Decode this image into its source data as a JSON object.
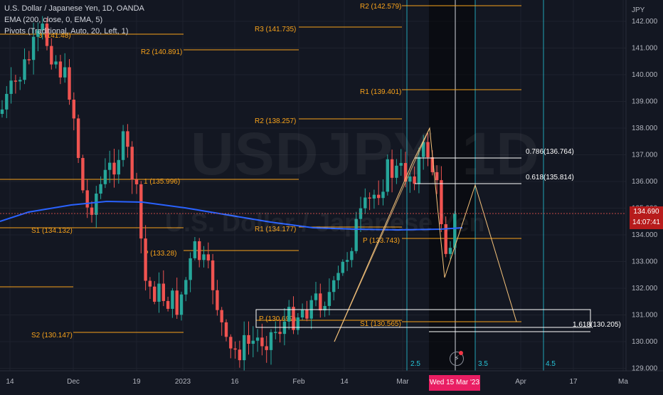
{
  "legend": {
    "line1": "U.S. Dollar / Japanese Yen, 1D, OANDA",
    "line2": "EMA (200, close, 0, EMA, 5)",
    "line3": "Pivots (Traditional, Auto, 20, Left, 1)"
  },
  "watermark": {
    "symbol": "USDJPY, 1D",
    "name": "U.S. Dollar / Japanese Yen"
  },
  "price_axis": {
    "currency": "JPY",
    "ticks": [
      "142.000",
      "141.000",
      "140.000",
      "139.000",
      "138.000",
      "137.000",
      "136.000",
      "135.000",
      "134.000",
      "133.000",
      "132.000",
      "131.000",
      "130.000",
      "129.000"
    ],
    "current_price": "134.690",
    "countdown": "14:07:41"
  },
  "time_axis": {
    "labels": [
      "14",
      "Dec",
      "19",
      "2023",
      "16",
      "Feb",
      "14",
      "Mar",
      "Apr",
      "17",
      "Ma"
    ],
    "highlight": "Wed 15 Mar '23"
  },
  "pivot_labels": [
    {
      "text": "R2 (142.579)"
    },
    {
      "text": "R3 (141.735)"
    },
    {
      "text": "R2 (140.891)"
    },
    {
      "text": "R1 (139.401)"
    },
    {
      "text": "R2 (138.257)"
    },
    {
      "text": "1 (135.996)"
    },
    {
      "text": "S1 (134.132)"
    },
    {
      "text": "R1 (134.177)"
    },
    {
      "text": "P (133.743)"
    },
    {
      "text": "P (133.28)"
    },
    {
      "text": "P (130.699)"
    },
    {
      "text": "S1 (130.565)"
    },
    {
      "text": "S2 (130.147)"
    },
    {
      "text": "3 (141.48)"
    }
  ],
  "fib_labels": [
    {
      "text": "0.786(136.764)"
    },
    {
      "text": "0.618(135.814)"
    },
    {
      "text": "1.618(130.205)"
    }
  ],
  "vertical_marks": [
    "2.5",
    "3.5",
    "4.5"
  ],
  "colors": {
    "background": "#131722",
    "up": "#26a69a",
    "down": "#ef5350",
    "pivot": "#f7a21b",
    "ema": "#2962ff",
    "fib": "#ffffff",
    "pattern": "#f5c27a",
    "cycle": "#26c6da",
    "price_tag": "#b71c1c",
    "date_tag": "#e91e63"
  },
  "icons": [
    "lightning-icon"
  ]
}
